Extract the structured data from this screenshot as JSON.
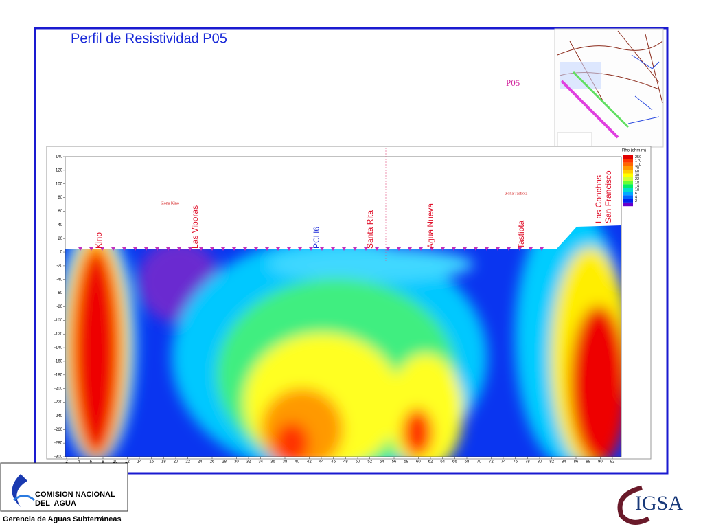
{
  "header": {
    "title": "Perfil de Resistividad P05",
    "profile_label": "P05"
  },
  "profile": {
    "y_ticks": [
      "140",
      "120",
      "100",
      "80",
      "60",
      "40",
      "20",
      "0",
      "-20",
      "-40",
      "-60",
      "-80",
      "-100",
      "-120",
      "-140",
      "-160",
      "-180",
      "-200",
      "-220",
      "-240",
      "-260",
      "-280",
      "-300"
    ],
    "x_ticks": [
      "2",
      "4",
      "6",
      "8",
      "10",
      "12",
      "14",
      "16",
      "18",
      "20",
      "22",
      "24",
      "26",
      "28",
      "30",
      "32",
      "34",
      "36",
      "38",
      "40",
      "42",
      "44",
      "46",
      "48",
      "50",
      "52",
      "54",
      "56",
      "58",
      "60",
      "62",
      "64",
      "66",
      "68",
      "70",
      "72",
      "74",
      "76",
      "78",
      "80",
      "82",
      "84",
      "86",
      "88",
      "90",
      "92"
    ],
    "zones": [
      "Zona Kino",
      "Zona  Tastiota"
    ],
    "places": [
      {
        "name": "Kino",
        "color": "#e0102a"
      },
      {
        "name": "Las Viboras",
        "color": "#e0102a"
      },
      {
        "name": "PCH6",
        "color": "#1a2ad8"
      },
      {
        "name": "Santa Rita",
        "color": "#e0102a"
      },
      {
        "name": "Agua Nueva",
        "color": "#e0102a"
      },
      {
        "name": "Tastiota",
        "color": "#e0102a"
      },
      {
        "name": "Las Conchas",
        "color": "#e0102a"
      },
      {
        "name": "San Francisco",
        "color": "#e0102a"
      }
    ],
    "legend": {
      "title": "Rho (ohm.m)",
      "items": [
        {
          "label": "250",
          "color": "#e00000"
        },
        {
          "label": "170",
          "color": "#ff3300"
        },
        {
          "label": "110",
          "color": "#ff6600"
        },
        {
          "label": "70",
          "color": "#ff9900"
        },
        {
          "label": "50",
          "color": "#ffcc00"
        },
        {
          "label": "30",
          "color": "#ffff00"
        },
        {
          "label": "22",
          "color": "#ccff33"
        },
        {
          "label": "18",
          "color": "#66ff33"
        },
        {
          "label": "14",
          "color": "#00ee66"
        },
        {
          "label": "10",
          "color": "#00ddcc"
        },
        {
          "label": "6",
          "color": "#00aaff"
        },
        {
          "label": "4",
          "color": "#0066ff"
        },
        {
          "label": "2",
          "color": "#0022ee"
        },
        {
          "label": "1",
          "color": "#6600cc"
        }
      ]
    }
  },
  "footer": {
    "org_line1": "COMISION NACIONAL",
    "org_line2": "DEL  AGUA",
    "department": "Gerencia de Aguas Subterráneas",
    "partner": "IGSA"
  }
}
